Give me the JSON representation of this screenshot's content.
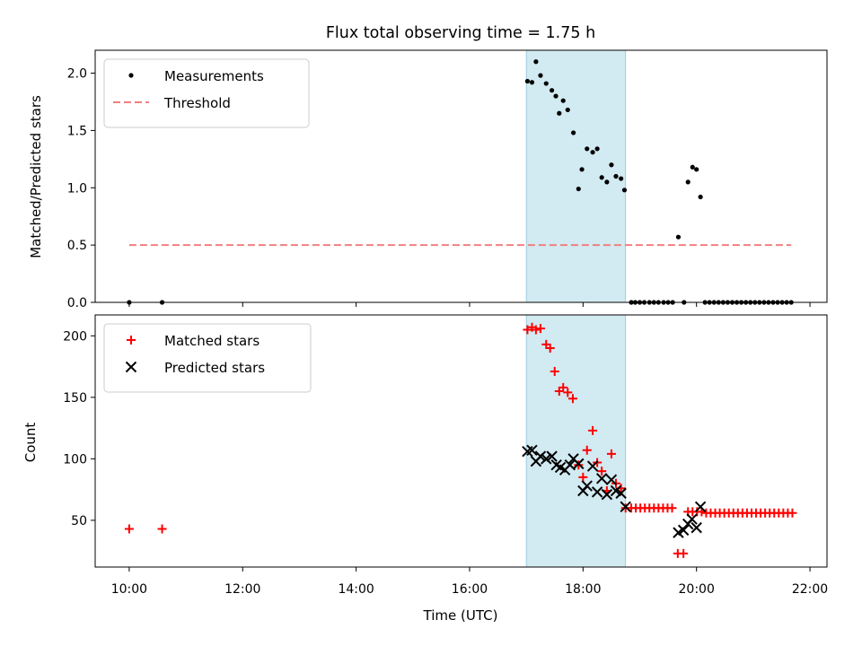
{
  "figure": {
    "title": "Flux total observing time = 1.75 h"
  },
  "chart_data": [
    {
      "type": "scatter",
      "panel": "top",
      "ylabel": "Matched/Predicted stars",
      "ylim": [
        0,
        2.2
      ],
      "yticks": [
        0.0,
        0.5,
        1.0,
        1.5,
        2.0
      ],
      "ytick_labels": [
        "0.0",
        "0.5",
        "1.0",
        "1.5",
        "2.0"
      ],
      "xlim_hours": [
        9.4,
        22.3
      ],
      "xticks_hours": [
        10,
        12,
        14,
        16,
        18,
        20,
        22
      ],
      "legend_position": "top-left",
      "highlight_span_hours": [
        17.0,
        18.75
      ],
      "series": [
        {
          "name": "Measurements",
          "kind": "scatter",
          "color": "#000000",
          "points": [
            [
              10.0,
              0.0
            ],
            [
              10.58,
              0.0
            ],
            [
              17.02,
              1.93
            ],
            [
              17.1,
              1.92
            ],
            [
              17.17,
              2.1
            ],
            [
              17.25,
              1.98
            ],
            [
              17.35,
              1.91
            ],
            [
              17.45,
              1.85
            ],
            [
              17.52,
              1.8
            ],
            [
              17.58,
              1.65
            ],
            [
              17.65,
              1.76
            ],
            [
              17.73,
              1.68
            ],
            [
              17.83,
              1.48
            ],
            [
              17.92,
              0.99
            ],
            [
              17.98,
              1.16
            ],
            [
              18.07,
              1.34
            ],
            [
              18.17,
              1.31
            ],
            [
              18.25,
              1.34
            ],
            [
              18.33,
              1.09
            ],
            [
              18.42,
              1.05
            ],
            [
              18.5,
              1.2
            ],
            [
              18.58,
              1.1
            ],
            [
              18.67,
              1.08
            ],
            [
              18.73,
              0.98
            ],
            [
              18.85,
              0.0
            ],
            [
              18.92,
              0.0
            ],
            [
              19.0,
              0.0
            ],
            [
              19.08,
              0.0
            ],
            [
              19.17,
              0.0
            ],
            [
              19.25,
              0.0
            ],
            [
              19.33,
              0.0
            ],
            [
              19.42,
              0.0
            ],
            [
              19.5,
              0.0
            ],
            [
              19.58,
              0.0
            ],
            [
              19.68,
              0.57
            ],
            [
              19.78,
              0.0
            ],
            [
              19.85,
              1.05
            ],
            [
              19.93,
              1.18
            ],
            [
              20.0,
              1.16
            ],
            [
              20.07,
              0.92
            ],
            [
              20.15,
              0.0
            ],
            [
              20.23,
              0.0
            ],
            [
              20.31,
              0.0
            ],
            [
              20.39,
              0.0
            ],
            [
              20.47,
              0.0
            ],
            [
              20.55,
              0.0
            ],
            [
              20.63,
              0.0
            ],
            [
              20.71,
              0.0
            ],
            [
              20.79,
              0.0
            ],
            [
              20.87,
              0.0
            ],
            [
              20.95,
              0.0
            ],
            [
              21.03,
              0.0
            ],
            [
              21.11,
              0.0
            ],
            [
              21.19,
              0.0
            ],
            [
              21.27,
              0.0
            ],
            [
              21.35,
              0.0
            ],
            [
              21.43,
              0.0
            ],
            [
              21.51,
              0.0
            ],
            [
              21.59,
              0.0
            ],
            [
              21.67,
              0.0
            ]
          ]
        },
        {
          "name": "Threshold",
          "kind": "dashed-line",
          "color": "#f08080",
          "points": [
            [
              10.0,
              0.5
            ],
            [
              21.67,
              0.5
            ]
          ]
        }
      ]
    },
    {
      "type": "scatter",
      "panel": "bottom",
      "xlabel": "Time (UTC)",
      "ylabel": "Count",
      "ylim": [
        12,
        217
      ],
      "yticks": [
        50,
        100,
        150,
        200
      ],
      "ytick_labels": [
        "50",
        "100",
        "150",
        "200"
      ],
      "xlim_hours": [
        9.4,
        22.3
      ],
      "xticks_hours": [
        10,
        12,
        14,
        16,
        18,
        20,
        22
      ],
      "xtick_labels": [
        "10:00",
        "12:00",
        "14:00",
        "16:00",
        "18:00",
        "20:00",
        "22:00"
      ],
      "legend_position": "top-left",
      "highlight_span_hours": [
        17.0,
        18.75
      ],
      "series": [
        {
          "name": "Matched stars",
          "kind": "plus",
          "color": "#ff0000",
          "points": [
            [
              10.0,
              43
            ],
            [
              10.58,
              43
            ],
            [
              17.02,
              205
            ],
            [
              17.1,
              207
            ],
            [
              17.17,
              205
            ],
            [
              17.25,
              206
            ],
            [
              17.35,
              193
            ],
            [
              17.42,
              190
            ],
            [
              17.5,
              171
            ],
            [
              17.58,
              155
            ],
            [
              17.65,
              158
            ],
            [
              17.73,
              154
            ],
            [
              17.82,
              149
            ],
            [
              17.92,
              95
            ],
            [
              18.0,
              85
            ],
            [
              18.07,
              107
            ],
            [
              18.17,
              123
            ],
            [
              18.25,
              97
            ],
            [
              18.33,
              90
            ],
            [
              18.42,
              74
            ],
            [
              18.5,
              104
            ],
            [
              18.58,
              80
            ],
            [
              18.67,
              76
            ],
            [
              18.75,
              60
            ],
            [
              18.85,
              60
            ],
            [
              18.93,
              60
            ],
            [
              19.01,
              60
            ],
            [
              19.09,
              60
            ],
            [
              19.17,
              60
            ],
            [
              19.25,
              60
            ],
            [
              19.33,
              60
            ],
            [
              19.41,
              60
            ],
            [
              19.49,
              60
            ],
            [
              19.57,
              60
            ],
            [
              19.67,
              23
            ],
            [
              19.77,
              23
            ],
            [
              19.85,
              57
            ],
            [
              19.93,
              57
            ],
            [
              20.01,
              57
            ],
            [
              20.09,
              57
            ],
            [
              20.17,
              56
            ],
            [
              20.25,
              56
            ],
            [
              20.33,
              56
            ],
            [
              20.41,
              56
            ],
            [
              20.49,
              56
            ],
            [
              20.57,
              56
            ],
            [
              20.65,
              56
            ],
            [
              20.73,
              56
            ],
            [
              20.81,
              56
            ],
            [
              20.89,
              56
            ],
            [
              20.97,
              56
            ],
            [
              21.05,
              56
            ],
            [
              21.13,
              56
            ],
            [
              21.21,
              56
            ],
            [
              21.29,
              56
            ],
            [
              21.37,
              56
            ],
            [
              21.45,
              56
            ],
            [
              21.53,
              56
            ],
            [
              21.61,
              56
            ],
            [
              21.69,
              56
            ]
          ]
        },
        {
          "name": "Predicted stars",
          "kind": "cross",
          "color": "#000000",
          "points": [
            [
              17.02,
              106
            ],
            [
              17.1,
              107
            ],
            [
              17.17,
              98
            ],
            [
              17.25,
              102
            ],
            [
              17.35,
              100
            ],
            [
              17.45,
              102
            ],
            [
              17.53,
              95
            ],
            [
              17.6,
              93
            ],
            [
              17.68,
              91
            ],
            [
              17.77,
              95
            ],
            [
              17.83,
              100
            ],
            [
              17.92,
              96
            ],
            [
              18.0,
              74
            ],
            [
              18.07,
              78
            ],
            [
              18.17,
              94
            ],
            [
              18.25,
              73
            ],
            [
              18.33,
              84
            ],
            [
              18.42,
              71
            ],
            [
              18.5,
              83
            ],
            [
              18.58,
              74
            ],
            [
              18.67,
              72
            ],
            [
              18.75,
              61
            ],
            [
              19.68,
              40
            ],
            [
              19.77,
              42
            ],
            [
              19.85,
              47
            ],
            [
              19.92,
              51
            ],
            [
              20.0,
              44
            ],
            [
              20.07,
              61
            ]
          ]
        }
      ]
    }
  ]
}
